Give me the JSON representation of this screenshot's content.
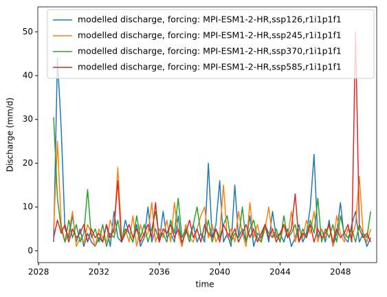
{
  "chart_data": {
    "type": "line",
    "x_label": "time",
    "y_label": "Discharge (mm/d)",
    "x": [
      2029,
      2029.25,
      2029.5,
      2029.75,
      2030,
      2030.25,
      2030.5,
      2030.75,
      2031,
      2031.25,
      2031.5,
      2031.75,
      2032,
      2032.25,
      2032.5,
      2032.75,
      2033,
      2033.25,
      2033.5,
      2033.75,
      2034,
      2034.25,
      2034.5,
      2034.75,
      2035,
      2035.25,
      2035.5,
      2035.75,
      2036,
      2036.25,
      2036.5,
      2036.75,
      2037,
      2037.25,
      2037.5,
      2037.75,
      2038,
      2038.25,
      2038.5,
      2038.75,
      2039,
      2039.25,
      2039.5,
      2039.75,
      2040,
      2040.25,
      2040.5,
      2040.75,
      2041,
      2041.25,
      2041.5,
      2041.75,
      2042,
      2042.25,
      2042.5,
      2042.75,
      2043,
      2043.25,
      2043.5,
      2043.75,
      2044,
      2044.25,
      2044.5,
      2044.75,
      2045,
      2045.25,
      2045.5,
      2045.75,
      2046,
      2046.25,
      2046.5,
      2046.75,
      2047,
      2047.25,
      2047.5,
      2047.75,
      2048,
      2048.25,
      2048.5,
      2048.75,
      2049,
      2049.25,
      2049.5,
      2049.75,
      2050
    ],
    "series": [
      {
        "name": "modelled discharge, forcing: MPI-ESM1-2-HR,ssp126,r1i1p1f1",
        "color": "#1f77b4",
        "values": [
          2,
          44,
          28,
          5,
          3,
          8,
          2,
          5,
          1,
          4,
          2,
          1,
          3,
          2,
          6,
          1,
          9,
          3,
          2,
          7,
          4,
          2,
          6,
          1,
          3,
          10,
          2,
          5,
          2,
          9,
          3,
          4,
          2,
          8,
          1,
          5,
          3,
          6,
          2,
          4,
          2,
          20,
          3,
          6,
          16,
          2,
          4,
          1,
          15,
          3,
          5,
          2,
          8,
          1,
          4,
          3,
          6,
          2,
          9,
          3,
          4,
          2,
          5,
          1,
          3,
          6,
          2,
          4,
          10,
          22,
          3,
          5,
          2,
          7,
          1,
          4,
          11,
          3,
          2,
          6,
          9,
          2,
          4,
          1,
          3
        ]
      },
      {
        "name": "modelled discharge, forcing: MPI-ESM1-2-HR,ssp245,r1i1p1f1",
        "color": "#ff7f0e",
        "values": [
          5,
          25,
          6,
          2,
          4,
          9,
          1,
          3,
          2,
          6,
          4,
          1,
          5,
          3,
          2,
          7,
          4,
          19,
          3,
          5,
          2,
          8,
          1,
          6,
          3,
          4,
          11,
          2,
          5,
          3,
          7,
          2,
          11,
          4,
          1,
          6,
          3,
          2,
          5,
          8,
          10,
          3,
          6,
          2,
          4,
          15,
          3,
          5,
          2,
          9,
          4,
          1,
          11,
          3,
          6,
          2,
          5,
          10,
          3,
          4,
          2,
          6,
          3,
          9,
          2,
          5,
          3,
          7,
          4,
          9,
          2,
          5,
          3,
          6,
          1,
          8,
          4,
          2,
          5,
          3,
          6,
          17,
          4,
          2,
          5
        ]
      },
      {
        "name": "modelled discharge, forcing: MPI-ESM1-2-HR,ssp370,r1i1p1f1",
        "color": "#2ca02c",
        "values": [
          30.5,
          12,
          5,
          2,
          7,
          3,
          6,
          2,
          4,
          14,
          3,
          5,
          2,
          6,
          1,
          4,
          3,
          7,
          2,
          5,
          4,
          2,
          8,
          3,
          6,
          2,
          5,
          9,
          3,
          4,
          2,
          7,
          4,
          12,
          3,
          5,
          2,
          6,
          10,
          4,
          3,
          7,
          2,
          5,
          3,
          6,
          8,
          2,
          4,
          3,
          10,
          2,
          5,
          7,
          3,
          2,
          6,
          4,
          3,
          5,
          2,
          8,
          3,
          4,
          6,
          2,
          5,
          3,
          7,
          4,
          12,
          2,
          5,
          3,
          6,
          2,
          8,
          4,
          3,
          5,
          2,
          6,
          4,
          3,
          9
        ]
      },
      {
        "name": "modelled discharge, forcing: MPI-ESM1-2-HR,ssp585,r1i1p1f1",
        "color": "#d62728",
        "values": [
          3,
          7,
          4,
          6,
          2,
          5,
          3,
          4,
          6,
          2,
          5,
          3,
          4,
          2,
          6,
          3,
          5,
          16,
          2,
          4,
          6,
          3,
          5,
          2,
          4,
          6,
          3,
          11,
          2,
          5,
          4,
          6,
          3,
          5,
          2,
          4,
          7,
          3,
          5,
          2,
          6,
          4,
          3,
          5,
          2,
          6,
          4,
          3,
          5,
          2,
          4,
          6,
          3,
          5,
          2,
          4,
          6,
          3,
          5,
          2,
          4,
          6,
          3,
          5,
          13,
          2,
          4,
          3,
          6,
          2,
          5,
          3,
          4,
          6,
          2,
          5,
          3,
          4,
          6,
          2,
          50,
          5,
          3,
          4,
          2
        ]
      }
    ],
    "xlim": [
      2027.95,
      2050.4
    ],
    "xticks": [
      2028,
      2032,
      2036,
      2040,
      2044,
      2048
    ],
    "ylim": [
      -2.7,
      55.7
    ],
    "yticks": [
      0,
      10,
      20,
      30,
      40,
      50
    ],
    "legend_loc": "upper right"
  }
}
